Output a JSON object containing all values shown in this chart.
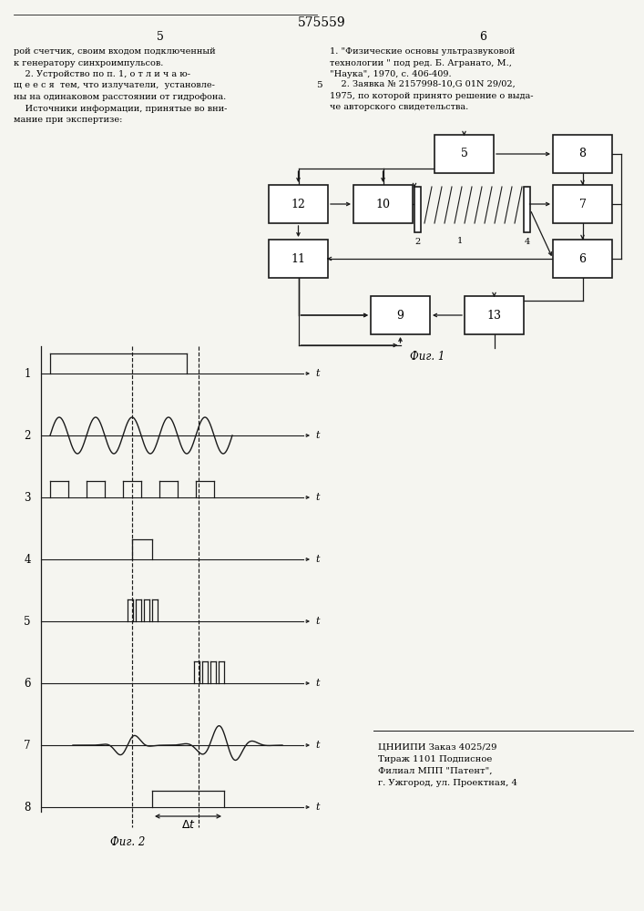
{
  "title": "575559",
  "page_num_left": "5",
  "page_num_right": "6",
  "text_left": [
    "рой счетчик, своим входом подключенный",
    "к генератору синхроимпульсов.",
    "    2. Устройство по п. 1, о т л и ч а ю-",
    "щ е е с я  тем, что излучатели,  установле-",
    "ны на одинаковом расстоянии от гидрофона.",
    "    Источники информации, принятые во вни-",
    "мание при экспертизе:"
  ],
  "text_right_1": [
    "1. \"Физические основы ультразвуковой",
    "технологии \" под ред. Б. Агранато, М.,",
    "\"Наука\", 1970, с. 406-409."
  ],
  "text_right_2": [
    "    2. Заявка № 2157998-10,G 01N 29/02,",
    "1975, по которой принято решение о выда-",
    "че авторского свидетельства."
  ],
  "fig1_label": "Фиг. 1",
  "fig2_label": "Фиг. 2",
  "bottom_text_line1": "ЦНИИПИ Заказ 4025/29",
  "bottom_text_line2": "Тираж 1101 Подписное",
  "bottom_text_line3": "Филиал МПП \"Патент\",",
  "bottom_text_line4": "г. Ужгород, ул. Проектная, 4",
  "signal_labels": [
    "1",
    "2",
    "3",
    "4",
    "5",
    "6",
    "7",
    "8"
  ],
  "background_color": "#f5f5f0",
  "line_color": "#1a1a1a"
}
